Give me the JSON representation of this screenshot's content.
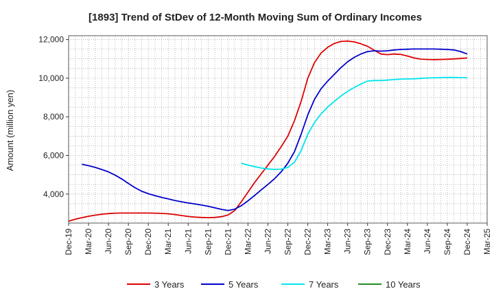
{
  "chart_data": {
    "type": "line",
    "title": "[1893]  Trend of StDev of 12-Month Moving Sum of Ordinary Incomes",
    "ylabel": "Amount (million yen)",
    "xlabel": "",
    "ylim": [
      2500,
      12200
    ],
    "yticks": [
      4000,
      6000,
      8000,
      10000,
      12000
    ],
    "ytick_labels": [
      "4,000",
      "6,000",
      "8,000",
      "10,000",
      "12,000"
    ],
    "x_range": [
      "2019-12",
      "2025-03"
    ],
    "xtick_labels": [
      "Dec-19",
      "Mar-20",
      "Jun-20",
      "Sep-20",
      "Dec-20",
      "Mar-21",
      "Jun-21",
      "Sep-21",
      "Dec-21",
      "Mar-22",
      "Jun-22",
      "Sep-22",
      "Dec-22",
      "Mar-23",
      "Jun-23",
      "Sep-23",
      "Dec-23",
      "Mar-24",
      "Jun-24",
      "Sep-24",
      "Dec-24",
      "Mar-25"
    ],
    "grid": true,
    "legend_position": "bottom",
    "series": [
      {
        "name": "3 Years",
        "color": "#dd0000",
        "points": [
          [
            "2019-12",
            2600
          ],
          [
            "2020-01",
            2700
          ],
          [
            "2020-02",
            2780
          ],
          [
            "2020-03",
            2850
          ],
          [
            "2020-04",
            2910
          ],
          [
            "2020-05",
            2960
          ],
          [
            "2020-06",
            2990
          ],
          [
            "2020-07",
            3010
          ],
          [
            "2020-08",
            3020
          ],
          [
            "2020-09",
            3020
          ],
          [
            "2020-10",
            3020
          ],
          [
            "2020-11",
            3020
          ],
          [
            "2020-12",
            3020
          ],
          [
            "2021-01",
            3010
          ],
          [
            "2021-02",
            3000
          ],
          [
            "2021-03",
            2980
          ],
          [
            "2021-04",
            2940
          ],
          [
            "2021-05",
            2890
          ],
          [
            "2021-06",
            2840
          ],
          [
            "2021-07",
            2810
          ],
          [
            "2021-08",
            2790
          ],
          [
            "2021-09",
            2780
          ],
          [
            "2021-10",
            2790
          ],
          [
            "2021-11",
            2830
          ],
          [
            "2021-12",
            2920
          ],
          [
            "2022-01",
            3150
          ],
          [
            "2022-02",
            3600
          ],
          [
            "2022-03",
            4100
          ],
          [
            "2022-04",
            4600
          ],
          [
            "2022-05",
            5050
          ],
          [
            "2022-06",
            5500
          ],
          [
            "2022-07",
            5950
          ],
          [
            "2022-08",
            6450
          ],
          [
            "2022-09",
            7000
          ],
          [
            "2022-10",
            7800
          ],
          [
            "2022-11",
            8800
          ],
          [
            "2022-12",
            10000
          ],
          [
            "2023-01",
            10800
          ],
          [
            "2023-02",
            11300
          ],
          [
            "2023-03",
            11600
          ],
          [
            "2023-04",
            11800
          ],
          [
            "2023-05",
            11900
          ],
          [
            "2023-06",
            11920
          ],
          [
            "2023-07",
            11880
          ],
          [
            "2023-08",
            11780
          ],
          [
            "2023-09",
            11650
          ],
          [
            "2023-10",
            11450
          ],
          [
            "2023-11",
            11250
          ],
          [
            "2023-12",
            11220
          ],
          [
            "2024-01",
            11250
          ],
          [
            "2024-02",
            11230
          ],
          [
            "2024-03",
            11150
          ],
          [
            "2024-04",
            11050
          ],
          [
            "2024-05",
            10990
          ],
          [
            "2024-06",
            10970
          ],
          [
            "2024-07",
            10960
          ],
          [
            "2024-08",
            10970
          ],
          [
            "2024-09",
            10980
          ],
          [
            "2024-10",
            11000
          ],
          [
            "2024-11",
            11020
          ],
          [
            "2024-12",
            11050
          ]
        ]
      },
      {
        "name": "5 Years",
        "color": "#0000cc",
        "points": [
          [
            "2020-02",
            5550
          ],
          [
            "2020-03",
            5470
          ],
          [
            "2020-04",
            5380
          ],
          [
            "2020-05",
            5270
          ],
          [
            "2020-06",
            5150
          ],
          [
            "2020-07",
            4980
          ],
          [
            "2020-08",
            4780
          ],
          [
            "2020-09",
            4550
          ],
          [
            "2020-10",
            4330
          ],
          [
            "2020-11",
            4150
          ],
          [
            "2020-12",
            4020
          ],
          [
            "2021-01",
            3920
          ],
          [
            "2021-02",
            3830
          ],
          [
            "2021-03",
            3750
          ],
          [
            "2021-04",
            3670
          ],
          [
            "2021-05",
            3600
          ],
          [
            "2021-06",
            3540
          ],
          [
            "2021-07",
            3490
          ],
          [
            "2021-08",
            3430
          ],
          [
            "2021-09",
            3370
          ],
          [
            "2021-10",
            3290
          ],
          [
            "2021-11",
            3210
          ],
          [
            "2021-12",
            3150
          ],
          [
            "2022-01",
            3220
          ],
          [
            "2022-02",
            3400
          ],
          [
            "2022-03",
            3650
          ],
          [
            "2022-04",
            3930
          ],
          [
            "2022-05",
            4220
          ],
          [
            "2022-06",
            4500
          ],
          [
            "2022-07",
            4800
          ],
          [
            "2022-08",
            5150
          ],
          [
            "2022-09",
            5600
          ],
          [
            "2022-10",
            6200
          ],
          [
            "2022-11",
            7100
          ],
          [
            "2022-12",
            8100
          ],
          [
            "2023-01",
            8900
          ],
          [
            "2023-02",
            9450
          ],
          [
            "2023-03",
            9850
          ],
          [
            "2023-04",
            10200
          ],
          [
            "2023-05",
            10550
          ],
          [
            "2023-06",
            10850
          ],
          [
            "2023-07",
            11080
          ],
          [
            "2023-08",
            11250
          ],
          [
            "2023-09",
            11380
          ],
          [
            "2023-10",
            11420
          ],
          [
            "2023-11",
            11400
          ],
          [
            "2023-12",
            11420
          ],
          [
            "2024-01",
            11460
          ],
          [
            "2024-02",
            11490
          ],
          [
            "2024-03",
            11500
          ],
          [
            "2024-04",
            11510
          ],
          [
            "2024-05",
            11510
          ],
          [
            "2024-06",
            11510
          ],
          [
            "2024-07",
            11510
          ],
          [
            "2024-08",
            11500
          ],
          [
            "2024-09",
            11490
          ],
          [
            "2024-10",
            11460
          ],
          [
            "2024-11",
            11380
          ],
          [
            "2024-12",
            11250
          ]
        ]
      },
      {
        "name": "7 Years",
        "color": "#00e5ee",
        "points": [
          [
            "2022-02",
            5600
          ],
          [
            "2022-03",
            5500
          ],
          [
            "2022-04",
            5420
          ],
          [
            "2022-05",
            5350
          ],
          [
            "2022-06",
            5300
          ],
          [
            "2022-07",
            5280
          ],
          [
            "2022-08",
            5290
          ],
          [
            "2022-09",
            5380
          ],
          [
            "2022-10",
            5650
          ],
          [
            "2022-11",
            6250
          ],
          [
            "2022-12",
            7100
          ],
          [
            "2023-01",
            7700
          ],
          [
            "2023-02",
            8150
          ],
          [
            "2023-03",
            8500
          ],
          [
            "2023-04",
            8800
          ],
          [
            "2023-05",
            9080
          ],
          [
            "2023-06",
            9320
          ],
          [
            "2023-07",
            9520
          ],
          [
            "2023-08",
            9700
          ],
          [
            "2023-09",
            9850
          ],
          [
            "2023-10",
            9880
          ],
          [
            "2023-11",
            9880
          ],
          [
            "2023-12",
            9900
          ],
          [
            "2024-01",
            9930
          ],
          [
            "2024-02",
            9950
          ],
          [
            "2024-03",
            9960
          ],
          [
            "2024-04",
            9970
          ],
          [
            "2024-05",
            9990
          ],
          [
            "2024-06",
            10010
          ],
          [
            "2024-07",
            10020
          ],
          [
            "2024-08",
            10030
          ],
          [
            "2024-09",
            10040
          ],
          [
            "2024-10",
            10040
          ],
          [
            "2024-11",
            10030
          ],
          [
            "2024-12",
            10020
          ]
        ]
      },
      {
        "name": "10 Years",
        "color": "#228b22",
        "points": []
      }
    ]
  }
}
